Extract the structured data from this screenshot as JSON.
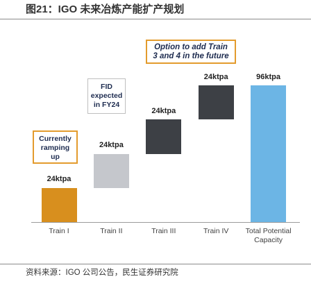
{
  "figure": {
    "source": "资料来源：IGO 公司公告，民生证券研究院"
  },
  "chart_data": {
    "type": "bar",
    "title": "图21：IGO 未来冶炼产能扩产规划",
    "categories": [
      "Train I",
      "Train II",
      "Train III",
      "Train IV",
      "Total Potential Capacity"
    ],
    "values": [
      24,
      24,
      24,
      24,
      96
    ],
    "ranges": [
      [
        0,
        24
      ],
      [
        24,
        48
      ],
      [
        48,
        72
      ],
      [
        72,
        96
      ],
      [
        0,
        96
      ]
    ],
    "data_labels": [
      "24ktpa",
      "24ktpa",
      "24ktpa",
      "24ktpa",
      "96ktpa"
    ],
    "colors": [
      "#d88f1e",
      "#c5c7cc",
      "#3d4045",
      "#3d4045",
      "#6cb5e5"
    ],
    "ylim": [
      0,
      96
    ],
    "grid": false,
    "legend": "none",
    "annotations": [
      {
        "lines": [
          "Currently",
          "ramping",
          "up"
        ],
        "border_color": "#e39b2d"
      },
      {
        "lines": [
          "FID",
          "expected",
          "in FY24"
        ],
        "border_color": "#bfbfbf"
      },
      {
        "lines": [
          "Option to add Train",
          "3 and 4 in the future"
        ],
        "border_color": "#e39b2d"
      }
    ]
  }
}
